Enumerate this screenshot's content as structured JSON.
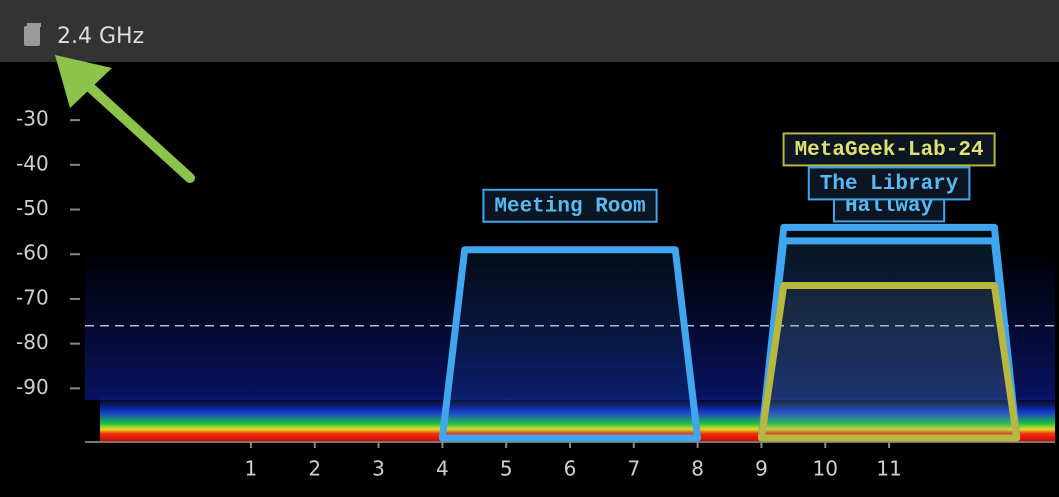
{
  "header": {
    "band": "2.4 GHz"
  },
  "chart_data": {
    "type": "spectrum",
    "ylim": [
      -102,
      -17
    ],
    "yticks": [
      -30,
      -40,
      -50,
      -60,
      -70,
      -80,
      -90
    ],
    "xlim": [
      -1.6,
      13.6
    ],
    "xticks": [
      1,
      2,
      3,
      4,
      5,
      6,
      7,
      8,
      9,
      10,
      11
    ],
    "threshold": -76,
    "series": [
      {
        "name": "Meeting Room",
        "color": "#3fa6ef",
        "channel": 6,
        "values": [
          -59
        ]
      },
      {
        "name": "Hallway",
        "color": "#3fa6ef",
        "channel": 11,
        "values": [
          -57
        ]
      },
      {
        "name": "The Library",
        "color": "#3fa6ef",
        "channel": 11,
        "values": [
          -54
        ]
      },
      {
        "name": "MetaGeek-Lab-24",
        "color": "#b8b840",
        "channel": 11,
        "values": [
          -67
        ]
      }
    ]
  }
}
